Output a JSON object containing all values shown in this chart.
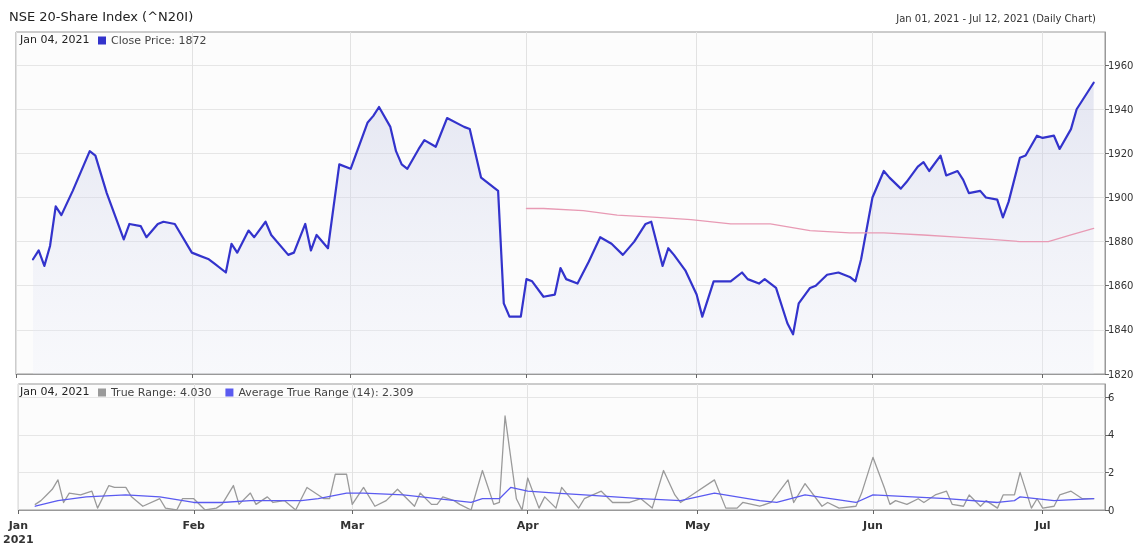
{
  "chart_data": [
    {
      "type": "area",
      "title": "NSE 20-Share Index (^N20I)",
      "subtitle": "Jan 01, 2021 - Jul 12, 2021 (Daily Chart)",
      "annotations": [
        "Jan 04, 2021"
      ],
      "legend": "top left",
      "grid": true,
      "tick_labels": "y",
      "xlim": [
        "2021-01-01",
        "2021-07-12"
      ],
      "xticks": [
        {
          "value": "2021-01-01",
          "label": null
        },
        {
          "value": "2021-02-01",
          "label": null
        },
        {
          "value": "2021-03-01",
          "label": null
        },
        {
          "value": "2021-04-01",
          "label": null
        },
        {
          "value": "2021-05-01",
          "label": null
        },
        {
          "value": "2021-06-01",
          "label": null
        },
        {
          "value": "2021-07-01",
          "label": null
        }
      ],
      "ylim": [
        1820,
        1975
      ],
      "yticks": [
        1820,
        1840,
        1860,
        1880,
        1900,
        1920,
        1940,
        1960
      ],
      "series": [
        {
          "name": "Close Price: 1872",
          "color": "#3333cc",
          "x": [
            "2021-01-04",
            "2021-01-05",
            "2021-01-06",
            "2021-01-07",
            "2021-01-08",
            "2021-01-09",
            "2021-01-11",
            "2021-01-14",
            "2021-01-15",
            "2021-01-17",
            "2021-01-20",
            "2021-01-21",
            "2021-01-23",
            "2021-01-24",
            "2021-01-26",
            "2021-01-27",
            "2021-01-29",
            "2021-02-01",
            "2021-02-02",
            "2021-02-04",
            "2021-02-05",
            "2021-02-07",
            "2021-02-08",
            "2021-02-09",
            "2021-02-11",
            "2021-02-12",
            "2021-02-14",
            "2021-02-15",
            "2021-02-18",
            "2021-02-19",
            "2021-02-21",
            "2021-02-22",
            "2021-02-23",
            "2021-02-25",
            "2021-02-27",
            "2021-03-01",
            "2021-03-04",
            "2021-03-05",
            "2021-03-06",
            "2021-03-08",
            "2021-03-09",
            "2021-03-10",
            "2021-03-11",
            "2021-03-13",
            "2021-03-14",
            "2021-03-16",
            "2021-03-18",
            "2021-03-21",
            "2021-03-22",
            "2021-03-24",
            "2021-03-27",
            "2021-03-28",
            "2021-03-29",
            "2021-03-31",
            "2021-04-01",
            "2021-04-02",
            "2021-04-04",
            "2021-04-06",
            "2021-04-07",
            "2021-04-08",
            "2021-04-10",
            "2021-04-12",
            "2021-04-14",
            "2021-04-16",
            "2021-04-18",
            "2021-04-20",
            "2021-04-22",
            "2021-04-23",
            "2021-04-25",
            "2021-04-26",
            "2021-04-27",
            "2021-04-29",
            "2021-05-01",
            "2021-05-02",
            "2021-05-04",
            "2021-05-07",
            "2021-05-09",
            "2021-05-10",
            "2021-05-12",
            "2021-05-13",
            "2021-05-15",
            "2021-05-17",
            "2021-05-18",
            "2021-05-19",
            "2021-05-21",
            "2021-05-22",
            "2021-05-24",
            "2021-05-26",
            "2021-05-28",
            "2021-05-29",
            "2021-05-30",
            "2021-06-01",
            "2021-06-03",
            "2021-06-04",
            "2021-06-06",
            "2021-06-07",
            "2021-06-09",
            "2021-06-10",
            "2021-06-11",
            "2021-06-13",
            "2021-06-14",
            "2021-06-16",
            "2021-06-17",
            "2021-06-18",
            "2021-06-20",
            "2021-06-21",
            "2021-06-23",
            "2021-06-24",
            "2021-06-25",
            "2021-06-27",
            "2021-06-28",
            "2021-06-30",
            "2021-07-01",
            "2021-07-03",
            "2021-07-04",
            "2021-07-06",
            "2021-07-07",
            "2021-07-10"
          ],
          "values": [
            1872,
            1876,
            1869,
            1878,
            1896,
            1892,
            1903,
            1921,
            1919,
            1902,
            1881,
            1888,
            1887,
            1882,
            1888,
            1889,
            1888,
            1875,
            1874,
            1872,
            1870,
            1866,
            1879,
            1875,
            1885,
            1882,
            1889,
            1883,
            1874,
            1875,
            1888,
            1876,
            1883,
            1877,
            1915,
            1913,
            1934,
            1937,
            1941,
            1932,
            1921,
            1915,
            1913,
            1922,
            1926,
            1923,
            1936,
            1932,
            1931,
            1909,
            1903,
            1852,
            1846,
            1846,
            1863,
            1862,
            1855,
            1856,
            1868,
            1863,
            1861,
            1871,
            1882,
            1879,
            1874,
            1880,
            1888,
            1889,
            1869,
            1877,
            1874,
            1867,
            1856,
            1846,
            1862,
            1862,
            1866,
            1863,
            1861,
            1863,
            1859,
            1843,
            1838,
            1852,
            1859,
            1860,
            1865,
            1866,
            1864,
            1862,
            1872,
            1900,
            1912,
            1909,
            1904,
            1907,
            1914,
            1916,
            1912,
            1919,
            1910,
            1912,
            1908,
            1902,
            1903,
            1900,
            1899,
            1891,
            1898,
            1918,
            1919,
            1928,
            1927,
            1928,
            1922,
            1931,
            1940,
            1952
          ]
        },
        {
          "type": "line",
          "color": "#e89ab4",
          "x": [
            "2021-04-01",
            "2021-04-04",
            "2021-04-11",
            "2021-04-17",
            "2021-04-24",
            "2021-04-30",
            "2021-05-07",
            "2021-05-14",
            "2021-05-21",
            "2021-05-28",
            "2021-06-03",
            "2021-06-10",
            "2021-06-16",
            "2021-06-22",
            "2021-06-27",
            "2021-07-02",
            "2021-07-06",
            "2021-07-10"
          ],
          "values": [
            1895,
            1895,
            1894,
            1892,
            1891,
            1890,
            1888,
            1888,
            1885,
            1884,
            1884,
            1883,
            1882,
            1881,
            1880,
            1880,
            1883,
            1886
          ]
        }
      ]
    },
    {
      "type": "line",
      "annotations": [
        "Jan 04, 2021"
      ],
      "legend": "top left",
      "grid": true,
      "xlim": [
        "2021-01-01",
        "2021-07-12"
      ],
      "xticks": [
        {
          "value": "2021-01-01",
          "label": "Jan\n2021"
        },
        {
          "value": "2021-02-01",
          "label": "Feb"
        },
        {
          "value": "2021-03-01",
          "label": "Mar"
        },
        {
          "value": "2021-04-01",
          "label": "Apr"
        },
        {
          "value": "2021-05-01",
          "label": "May"
        },
        {
          "value": "2021-06-01",
          "label": "Jun"
        },
        {
          "value": "2021-07-01",
          "label": "Jul"
        }
      ],
      "ylim": [
        0,
        6.7
      ],
      "yticks": [
        0,
        2,
        4,
        6
      ],
      "series": [
        {
          "name": "True Range: 4.030",
          "color": "#9a9a9a",
          "x": [
            "2021-01-04",
            "2021-01-05",
            "2021-01-06",
            "2021-01-07",
            "2021-01-08",
            "2021-01-09",
            "2021-01-10",
            "2021-01-12",
            "2021-01-14",
            "2021-01-15",
            "2021-01-17",
            "2021-01-18",
            "2021-01-20",
            "2021-01-21",
            "2021-01-23",
            "2021-01-26",
            "2021-01-27",
            "2021-01-29",
            "2021-01-30",
            "2021-02-01",
            "2021-02-03",
            "2021-02-05",
            "2021-02-06",
            "2021-02-08",
            "2021-02-09",
            "2021-02-11",
            "2021-02-12",
            "2021-02-14",
            "2021-02-15",
            "2021-02-17",
            "2021-02-19",
            "2021-02-21",
            "2021-02-22",
            "2021-02-24",
            "2021-02-25",
            "2021-02-26",
            "2021-02-28",
            "2021-03-01",
            "2021-03-03",
            "2021-03-05",
            "2021-03-07",
            "2021-03-09",
            "2021-03-12",
            "2021-03-13",
            "2021-03-15",
            "2021-03-16",
            "2021-03-17",
            "2021-03-19",
            "2021-03-20",
            "2021-03-22",
            "2021-03-24",
            "2021-03-26",
            "2021-03-27",
            "2021-03-28",
            "2021-03-30",
            "2021-03-31",
            "2021-04-01",
            "2021-04-03",
            "2021-04-04",
            "2021-04-06",
            "2021-04-07",
            "2021-04-10",
            "2021-04-11",
            "2021-04-14",
            "2021-04-16",
            "2021-04-19",
            "2021-04-21",
            "2021-04-23",
            "2021-04-25",
            "2021-04-27",
            "2021-04-28",
            "2021-04-30",
            "2021-05-04",
            "2021-05-06",
            "2021-05-08",
            "2021-05-09",
            "2021-05-12",
            "2021-05-14",
            "2021-05-17",
            "2021-05-18",
            "2021-05-20",
            "2021-05-23",
            "2021-05-24",
            "2021-05-26",
            "2021-05-29",
            "2021-05-30",
            "2021-06-01",
            "2021-06-03",
            "2021-06-04",
            "2021-06-05",
            "2021-06-07",
            "2021-06-09",
            "2021-06-10",
            "2021-06-12",
            "2021-06-14",
            "2021-06-15",
            "2021-06-17",
            "2021-06-18",
            "2021-06-20",
            "2021-06-21",
            "2021-06-23",
            "2021-06-24",
            "2021-06-26",
            "2021-06-27",
            "2021-06-29",
            "2021-06-30",
            "2021-07-01",
            "2021-07-03",
            "2021-07-04",
            "2021-07-06",
            "2021-07-08",
            "2021-07-10"
          ],
          "values": [
            0.3,
            0.5,
            0.8,
            1.1,
            1.6,
            0.4,
            0.9,
            0.8,
            1.0,
            0.1,
            1.3,
            1.2,
            1.2,
            0.7,
            0.2,
            0.6,
            0.1,
            0,
            0.6,
            0.6,
            0,
            0.1,
            0.3,
            1.3,
            0.3,
            0.9,
            0.3,
            0.7,
            0.4,
            0.5,
            0,
            1.2,
            1.0,
            0.6,
            0.6,
            1.9,
            1.9,
            0.3,
            1.2,
            0.2,
            0.5,
            1.1,
            0.2,
            0.9,
            0.3,
            0.3,
            0.7,
            0.5,
            0.3,
            0,
            2.1,
            0.3,
            0.4,
            5.0,
            0.6,
            0,
            1.7,
            0.1,
            0.7,
            0.1,
            1.2,
            0.1,
            0.6,
            1.0,
            0.4,
            0.4,
            0.6,
            0.1,
            2.1,
            0.8,
            0.4,
            0.8,
            1.6,
            0.1,
            0.1,
            0.4,
            0.2,
            0.4,
            1.6,
            0.4,
            1.4,
            0.2,
            0.4,
            0.1,
            0.2,
            0.9,
            2.8,
            1.2,
            0.3,
            0.5,
            0.3,
            0.6,
            0.4,
            0.8,
            1.0,
            0.3,
            0.2,
            0.8,
            0.2,
            0.5,
            0.1,
            0.8,
            0.8,
            2.0,
            0.1,
            0.6,
            0.1,
            0.2,
            0.8,
            1.0,
            0.6,
            0.6
          ]
        },
        {
          "name": "Average True Range (14): 2.309",
          "color": "#5a5af0",
          "x": [
            "2021-01-04",
            "2021-01-08",
            "2021-01-13",
            "2021-01-20",
            "2021-01-26",
            "2021-02-01",
            "2021-02-06",
            "2021-02-11",
            "2021-02-20",
            "2021-02-23",
            "2021-02-28",
            "2021-03-03",
            "2021-03-10",
            "2021-03-16",
            "2021-03-22",
            "2021-03-24",
            "2021-03-27",
            "2021-03-29",
            "2021-04-01",
            "2021-04-06",
            "2021-04-11",
            "2021-04-21",
            "2021-04-28",
            "2021-05-04",
            "2021-05-12",
            "2021-05-15",
            "2021-05-20",
            "2021-05-29",
            "2021-06-01",
            "2021-06-14",
            "2021-06-23",
            "2021-06-26",
            "2021-06-27",
            "2021-07-03",
            "2021-07-10"
          ],
          "values": [
            0.2,
            0.5,
            0.7,
            0.8,
            0.7,
            0.4,
            0.4,
            0.5,
            0.5,
            0.6,
            0.9,
            0.9,
            0.8,
            0.6,
            0.4,
            0.6,
            0.6,
            1.2,
            1.0,
            0.9,
            0.8,
            0.6,
            0.5,
            0.9,
            0.5,
            0.4,
            0.8,
            0.4,
            0.8,
            0.6,
            0.4,
            0.5,
            0.7,
            0.5,
            0.6
          ]
        }
      ]
    }
  ]
}
